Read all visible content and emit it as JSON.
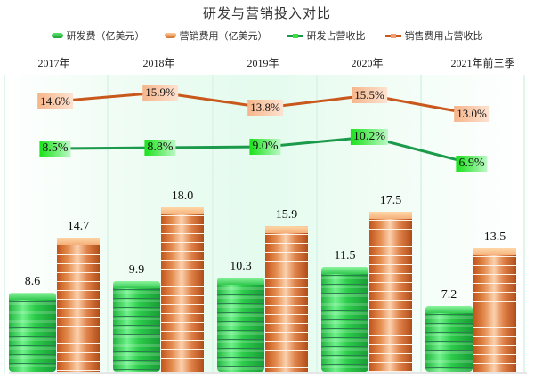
{
  "title": "研发与营销投入对比",
  "legend": [
    {
      "label": "研发费（亿美元）",
      "icon": "green-bar-icon"
    },
    {
      "label": "营销费用（亿美元）",
      "icon": "orange-bar-icon"
    },
    {
      "label": "研发占营收比",
      "icon": "green-line-icon"
    },
    {
      "label": "销售费用占营收比",
      "icon": "orange-line-icon"
    }
  ],
  "colors": {
    "rd_bar": "#2ccc4a",
    "marketing_bar": "#e38a4c",
    "rd_line": "#1b9a4c",
    "sales_line": "#c8581c"
  },
  "chart_data": {
    "type": "bar",
    "title": "研发与营销投入对比",
    "categories": [
      "2017年",
      "2018年",
      "2019年",
      "2020年",
      "2021年前三季"
    ],
    "series": [
      {
        "name": "研发费（亿美元）",
        "type": "bar",
        "values": [
          8.6,
          9.9,
          10.3,
          11.5,
          7.2
        ]
      },
      {
        "name": "营销费用（亿美元）",
        "type": "bar",
        "values": [
          14.7,
          18.0,
          15.9,
          17.5,
          13.5
        ]
      },
      {
        "name": "研发占营收比",
        "type": "line",
        "values": [
          8.5,
          8.8,
          9.0,
          10.2,
          6.9
        ],
        "labels": [
          "8.5%",
          "8.8%",
          "9.0%",
          "10.2%",
          "6.9%"
        ]
      },
      {
        "name": "销售费用占营收比",
        "type": "line",
        "values": [
          14.6,
          15.9,
          13.8,
          15.5,
          13.0
        ],
        "labels": [
          "14.6%",
          "15.9%",
          "13.8%",
          "15.5%",
          "13.0%"
        ]
      }
    ],
    "xlabel": "",
    "ylabel": "",
    "legend_position": "top",
    "category_labels_position": "top",
    "grid": "vertical"
  },
  "bar_labels": {
    "rd": [
      "8.6",
      "9.9",
      "10.3",
      "11.5",
      "7.2"
    ],
    "marketing": [
      "14.7",
      "18.0",
      "15.9",
      "17.5",
      "13.5"
    ]
  }
}
